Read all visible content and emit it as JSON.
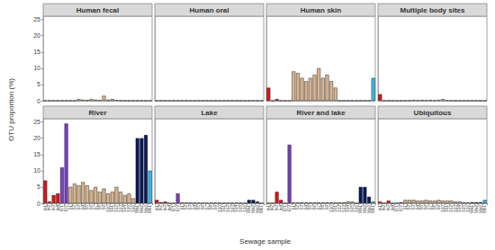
{
  "chart_data": {
    "type": "bar",
    "xlabel": "Sewage sample",
    "ylabel": "OTU proportion (%)",
    "ylim": [
      0,
      26
    ],
    "yticks": [
      0,
      5,
      10,
      15,
      20,
      25
    ],
    "grid": false,
    "categories": [
      "In1",
      "In2",
      "In3",
      "In4",
      "Ef1",
      "Ef2",
      "S1",
      "S2",
      "S3",
      "S4",
      "S5",
      "S6",
      "S7",
      "S8",
      "S9",
      "S10",
      "S11",
      "S12",
      "S13",
      "S14",
      "S15",
      "S16",
      "Wa1",
      "Wa2",
      "Wa3",
      "Wb1"
    ],
    "colors": [
      "#d7191c",
      "#d7191c",
      "#d7191c",
      "#d7191c",
      "#7b3fbf",
      "#7b3fbf",
      "#d9b48f",
      "#d9b48f",
      "#d9b48f",
      "#d9b48f",
      "#d9b48f",
      "#d9b48f",
      "#d9b48f",
      "#d9b48f",
      "#d9b48f",
      "#d9b48f",
      "#d9b48f",
      "#d9b48f",
      "#d9b48f",
      "#d9b48f",
      "#d9b48f",
      "#d9b48f",
      "#0b1a5c",
      "#0b1a5c",
      "#0b1a5c",
      "#33bbee"
    ],
    "panels": [
      {
        "title": "Human fecal",
        "values": [
          0,
          0,
          0,
          0,
          0,
          0,
          0,
          0,
          0.5,
          0.3,
          0.2,
          0.5,
          0.3,
          0.2,
          1.5,
          0.3,
          0.5,
          0.2,
          0,
          0,
          0,
          0,
          0,
          0,
          0,
          0
        ]
      },
      {
        "title": "Human oral",
        "values": [
          0,
          0,
          0,
          0,
          0,
          0,
          0,
          0,
          0,
          0,
          0,
          0,
          0,
          0,
          0,
          0,
          0,
          0,
          0,
          0,
          0,
          0,
          0,
          0,
          0,
          0
        ]
      },
      {
        "title": "Human skin",
        "values": [
          4,
          0,
          0.5,
          0,
          0,
          0,
          9,
          8.5,
          7,
          6,
          7,
          8,
          10,
          7,
          8,
          6,
          4,
          0,
          0,
          0,
          0,
          0,
          0,
          0,
          0,
          7
        ]
      },
      {
        "title": "Multiple body sites",
        "values": [
          2,
          0,
          0,
          0,
          0,
          0,
          0,
          0,
          0.2,
          0.1,
          0.2,
          0.1,
          0.2,
          0.1,
          0.2,
          0.5,
          0.1,
          0,
          0,
          0,
          0,
          0,
          0,
          0,
          0,
          0
        ]
      },
      {
        "title": "River",
        "values": [
          7,
          0.5,
          2.5,
          3,
          11,
          24.5,
          5,
          6,
          5.5,
          6.5,
          5.5,
          4,
          5,
          3.5,
          4.5,
          3,
          3.5,
          5,
          3.5,
          2.5,
          3,
          1.5,
          20,
          20,
          21,
          10
        ]
      },
      {
        "title": "Lake",
        "values": [
          1,
          0.3,
          0.5,
          0,
          0,
          3,
          0.2,
          0.2,
          0.1,
          0.1,
          0.1,
          0.1,
          0.1,
          0.1,
          0.1,
          0.1,
          0.1,
          0.1,
          0.1,
          0.1,
          0.1,
          0,
          1,
          1,
          0.5,
          0
        ]
      },
      {
        "title": "River and lake",
        "values": [
          0,
          0,
          3.5,
          1,
          0,
          18,
          0.2,
          0.2,
          0.2,
          0.2,
          0.2,
          0.2,
          0.2,
          0.2,
          0.2,
          0.2,
          0.2,
          0.2,
          0.2,
          0.5,
          0.5,
          0,
          5,
          5,
          2,
          0.5
        ]
      },
      {
        "title": "Ubiquitous",
        "values": [
          0.5,
          0,
          0.8,
          0,
          0,
          0.3,
          1,
          1,
          1,
          0.8,
          0.8,
          1,
          0.8,
          0.8,
          1,
          0.8,
          0.8,
          0.8,
          0.5,
          0.5,
          0.3,
          0.3,
          0.3,
          0.3,
          0.3,
          1
        ]
      }
    ]
  }
}
